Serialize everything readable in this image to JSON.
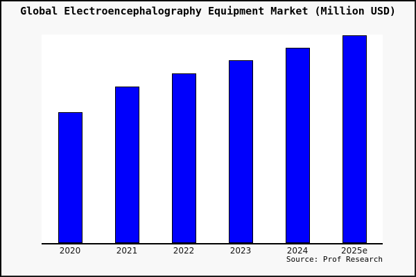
{
  "chart": {
    "source_label": "Source: Prof Research",
    "colors": {
      "bar_fill": "#0000fc",
      "bar_border": "#000000",
      "figure_background": "#f8f8f8",
      "plot_background": "#ffffff",
      "axis": "#000000",
      "frame_border": "#000000"
    }
  },
  "chart_data": {
    "type": "bar",
    "title": "Global Electroencephalography Equipment Market (Million USD)",
    "categories": [
      "2020",
      "2021",
      "2022",
      "2023",
      "2024",
      "2025e"
    ],
    "values": [
      189,
      226,
      245,
      264,
      282,
      300
    ],
    "value_note": "y-axis has no tick labels; values are relative bar heights estimated from pixels",
    "xlabel": "",
    "ylabel": "",
    "ylim": [
      0,
      301
    ],
    "grid": false,
    "legend": false,
    "y_axis_visible": false,
    "annotations": [
      "Source: Prof Research"
    ]
  }
}
